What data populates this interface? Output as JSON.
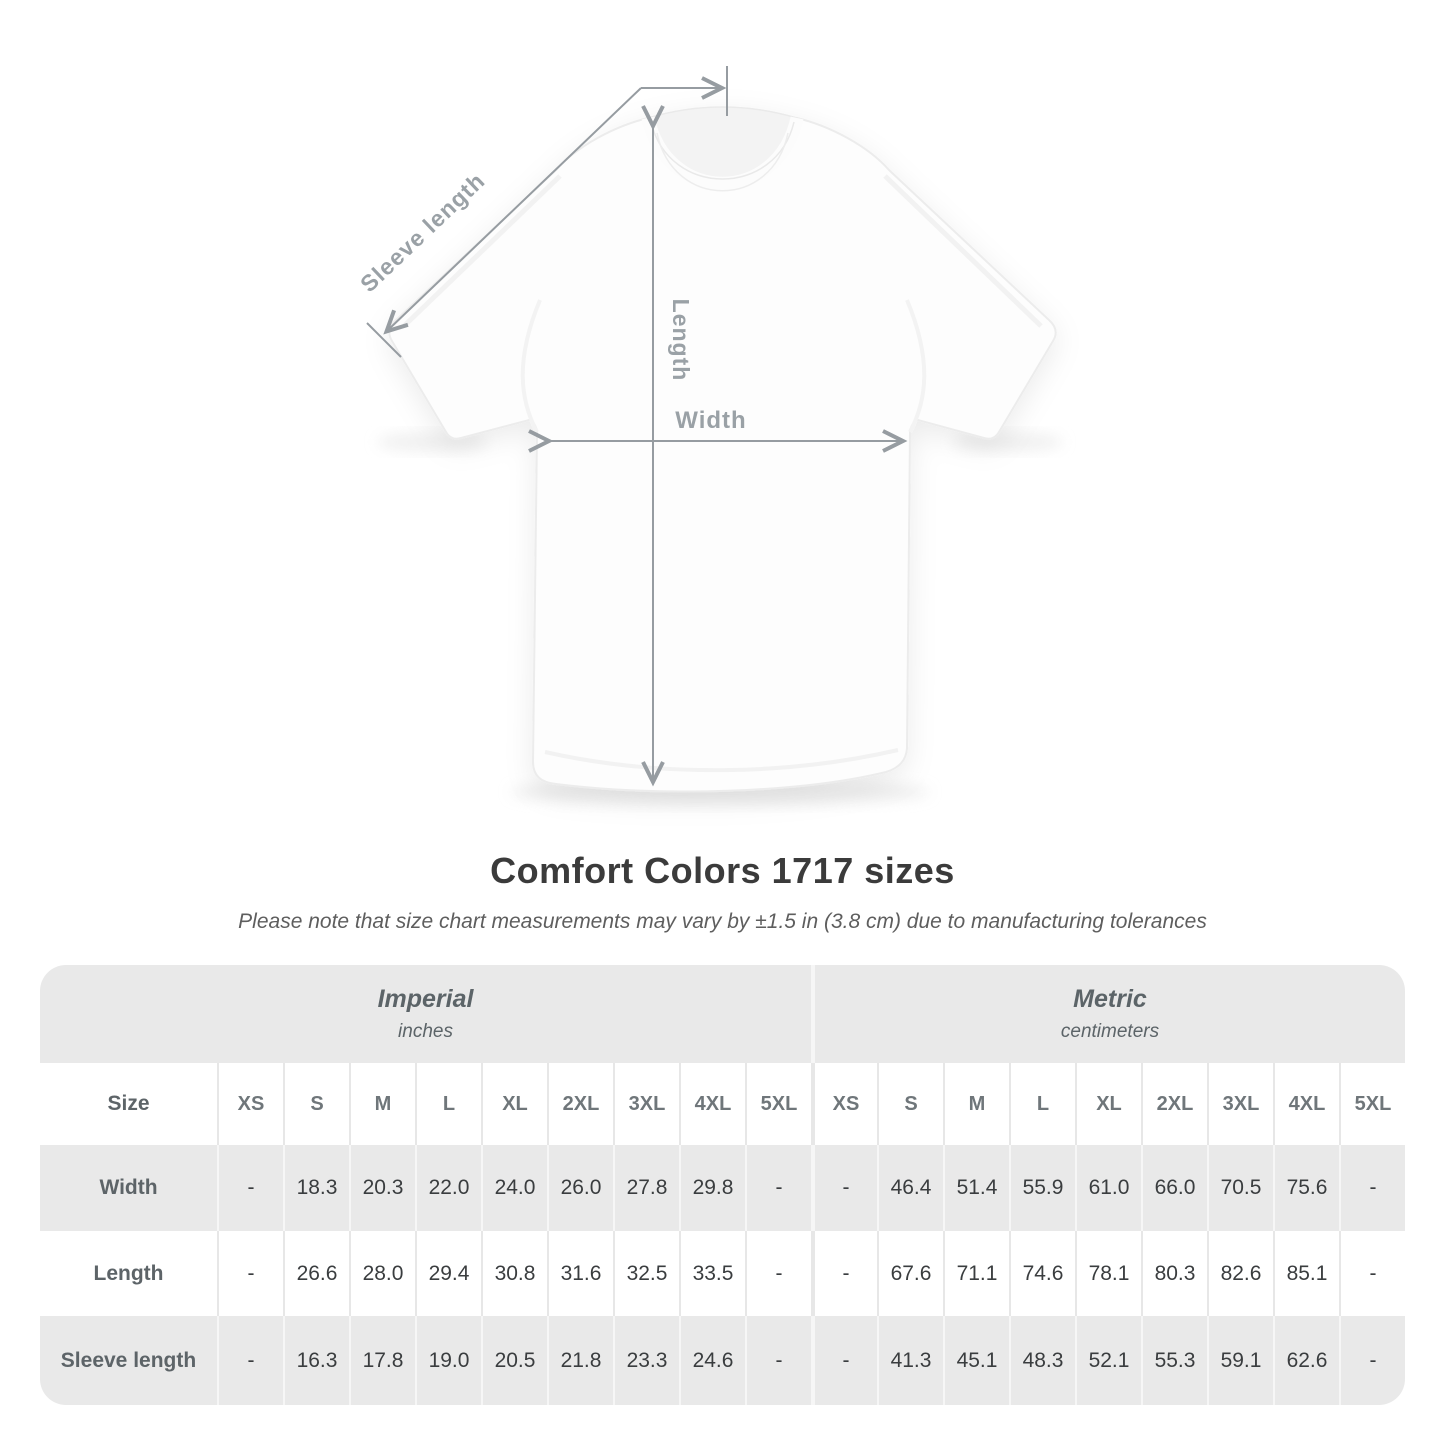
{
  "title": "Comfort Colors 1717 sizes",
  "subtitle": "Please note that size chart measurements may vary by ±1.5 in (3.8 cm) due to manufacturing tolerances",
  "diagram": {
    "sleeve_label": "Sleeve length",
    "length_label": "Length",
    "width_label": "Width"
  },
  "table": {
    "size_header": "Size",
    "unit_groups": [
      {
        "name": "Imperial",
        "unit": "inches"
      },
      {
        "name": "Metric",
        "unit": "centimeters"
      }
    ],
    "sizes": [
      "XS",
      "S",
      "M",
      "L",
      "XL",
      "2XL",
      "3XL",
      "4XL",
      "5XL"
    ],
    "rows": [
      {
        "label": "Width",
        "imperial": [
          "-",
          "18.3",
          "20.3",
          "22.0",
          "24.0",
          "26.0",
          "27.8",
          "29.8",
          "-"
        ],
        "metric": [
          "-",
          "46.4",
          "51.4",
          "55.9",
          "61.0",
          "66.0",
          "70.5",
          "75.6",
          "-"
        ]
      },
      {
        "label": "Length",
        "imperial": [
          "-",
          "26.6",
          "28.0",
          "29.4",
          "30.8",
          "31.6",
          "32.5",
          "33.5",
          "-"
        ],
        "metric": [
          "-",
          "67.6",
          "71.1",
          "74.6",
          "78.1",
          "80.3",
          "82.6",
          "85.1",
          "-"
        ]
      },
      {
        "label": "Sleeve length",
        "imperial": [
          "-",
          "16.3",
          "17.8",
          "19.0",
          "20.5",
          "21.8",
          "23.3",
          "24.6",
          "-"
        ],
        "metric": [
          "-",
          "41.3",
          "45.1",
          "48.3",
          "52.1",
          "55.3",
          "59.1",
          "62.6",
          "-"
        ]
      }
    ]
  },
  "chart_data": {
    "type": "table",
    "title": "Comfort Colors 1717 sizes",
    "note": "Size chart measurements may vary by ±1.5 in (3.8 cm) due to manufacturing tolerances",
    "column_groups": [
      "Imperial (inches)",
      "Metric (centimeters)"
    ],
    "columns": [
      "XS",
      "S",
      "M",
      "L",
      "XL",
      "2XL",
      "3XL",
      "4XL",
      "5XL"
    ],
    "rows": [
      {
        "label": "Width",
        "imperial_in": [
          null,
          18.3,
          20.3,
          22.0,
          24.0,
          26.0,
          27.8,
          29.8,
          null
        ],
        "metric_cm": [
          null,
          46.4,
          51.4,
          55.9,
          61.0,
          66.0,
          70.5,
          75.6,
          null
        ]
      },
      {
        "label": "Length",
        "imperial_in": [
          null,
          26.6,
          28.0,
          29.4,
          30.8,
          31.6,
          32.5,
          33.5,
          null
        ],
        "metric_cm": [
          null,
          67.6,
          71.1,
          74.6,
          78.1,
          80.3,
          82.6,
          85.1,
          null
        ]
      },
      {
        "label": "Sleeve length",
        "imperial_in": [
          null,
          16.3,
          17.8,
          19.0,
          20.5,
          21.8,
          23.3,
          24.6,
          null
        ],
        "metric_cm": [
          null,
          41.3,
          45.1,
          48.3,
          52.1,
          55.3,
          59.1,
          62.6,
          null
        ]
      }
    ]
  },
  "colors": {
    "annotation": "#969ca1",
    "title_text": "#3b3b3b",
    "note_text": "#5e5e5e",
    "band_bg": "#e9e9e9",
    "alt_row_bg": "#e9e9e9",
    "header_text": "#6f767a",
    "value_text": "#3a3d3f"
  }
}
